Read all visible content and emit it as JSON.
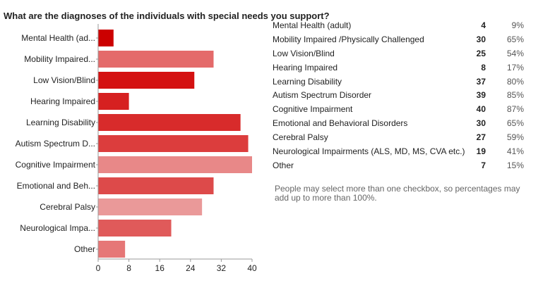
{
  "chart_data": {
    "type": "bar",
    "orientation": "horizontal",
    "title": "What are the diagnoses of the individuals with special needs you support?",
    "categories": [
      "Mental Health (adult)",
      "Mobility Impaired /Physically Challenged",
      "Low Vision/Blind",
      "Hearing Impaired",
      "Learning Disability",
      "Autism Spectrum Disorder",
      "Cognitive Impairment",
      "Emotional and Behavioral Disorders",
      "Cerebral Palsy",
      "Neurological Impairments (ALS, MD, MS, CVA etc.)",
      "Other"
    ],
    "axis_labels": [
      "Mental Health (ad...",
      "Mobility Impaired...",
      "Low Vision/Blind",
      "Hearing Impaired",
      "Learning Disability",
      "Autism Spectrum D...",
      "Cognitive Impairment",
      "Emotional and Beh...",
      "Cerebral Palsy",
      "Neurological Impa...",
      "Other"
    ],
    "values": [
      4,
      30,
      25,
      8,
      37,
      39,
      40,
      30,
      27,
      19,
      7
    ],
    "percents": [
      "9%",
      "65%",
      "54%",
      "17%",
      "80%",
      "85%",
      "87%",
      "65%",
      "59%",
      "41%",
      "15%"
    ],
    "colors": [
      "#cc0000",
      "#e46a6a",
      "#d41111",
      "#d62020",
      "#d82b2b",
      "#dc3d3d",
      "#e88888",
      "#dd4a4a",
      "#ea9999",
      "#e05a5a",
      "#e67777"
    ],
    "xticks": [
      "0",
      "8",
      "16",
      "24",
      "32",
      "40"
    ],
    "xlim": [
      0,
      40
    ],
    "xlabel": "",
    "ylabel": ""
  },
  "note": "People may select more than one checkbox, so percentages may add up to more than 100%."
}
